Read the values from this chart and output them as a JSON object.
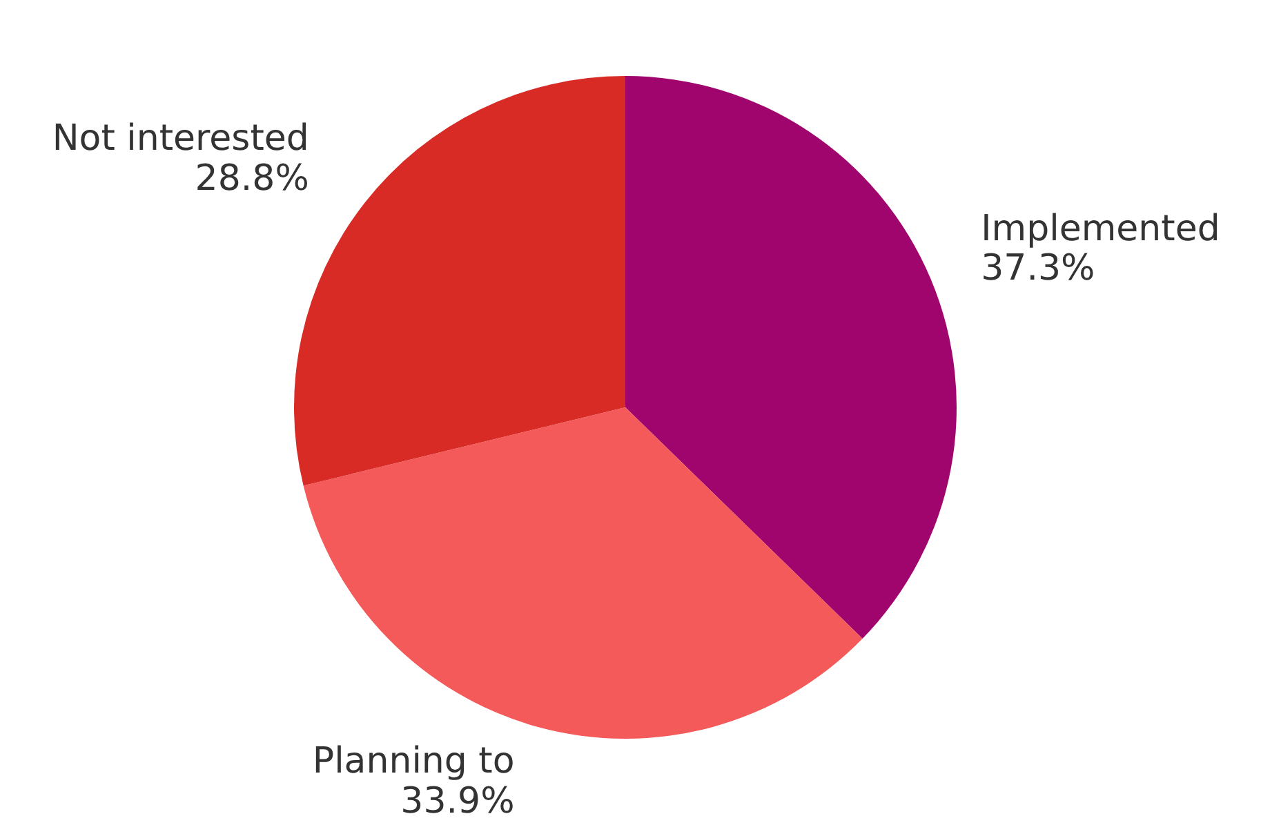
{
  "chart_data": {
    "type": "pie",
    "categories": [
      "Implemented",
      "Planning to",
      "Not interested"
    ],
    "values": [
      37.3,
      33.9,
      28.8
    ],
    "colors": [
      "#a0056e",
      "#f45a5a",
      "#d92b26"
    ],
    "value_labels": [
      "37.3%",
      "33.9%",
      "28.8%"
    ],
    "legend": false
  }
}
